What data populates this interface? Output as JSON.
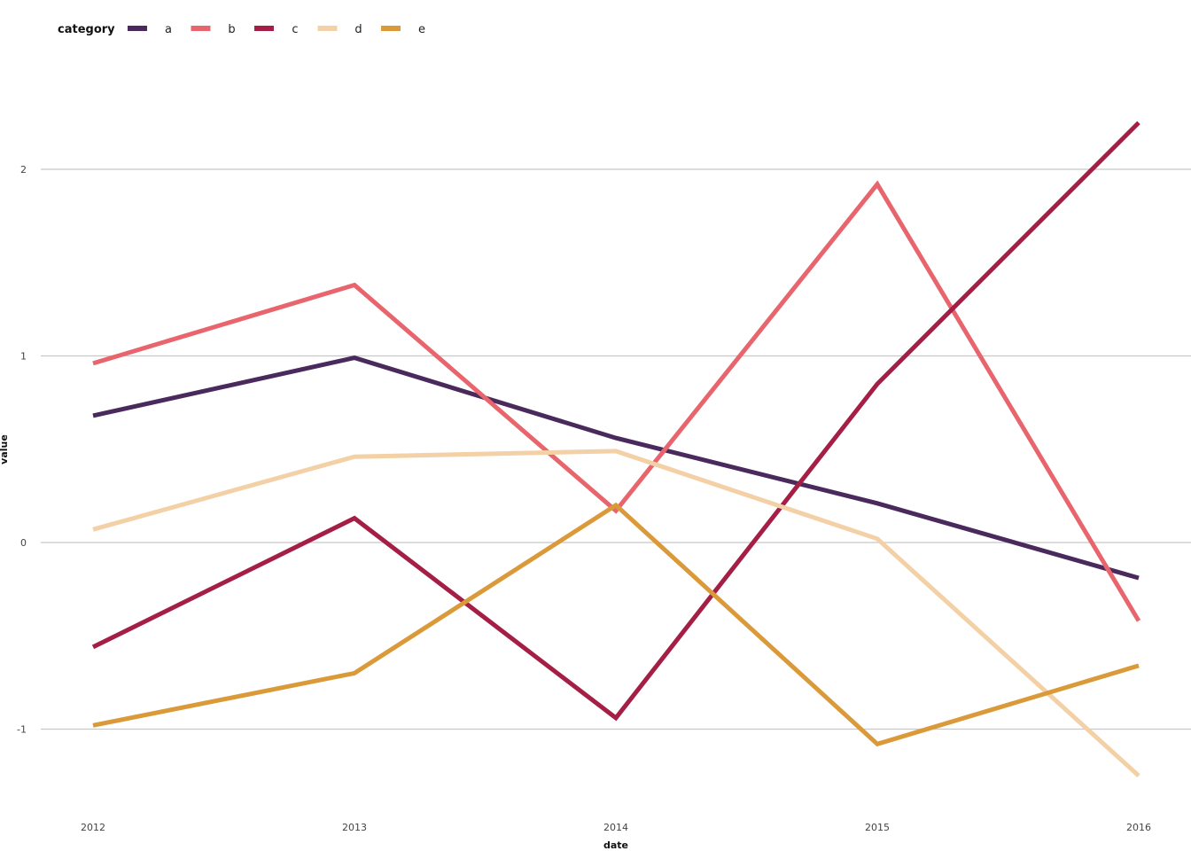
{
  "chart_data": {
    "type": "line",
    "xlabel": "date",
    "ylabel": "value",
    "x": [
      "2012",
      "2013",
      "2014",
      "2015",
      "2016"
    ],
    "x_ticks": [
      "2012",
      "2013",
      "2014",
      "2015",
      "2016"
    ],
    "y_ticks": [
      -1,
      0,
      1,
      2
    ],
    "ylim": [
      -1.4,
      2.4
    ],
    "grid": "horizontal",
    "legend": {
      "title": "category",
      "placement": "top-left"
    },
    "series": [
      {
        "name": "a",
        "color": "#4a2a5c",
        "values": [
          0.68,
          0.99,
          0.56,
          0.21,
          -0.19
        ]
      },
      {
        "name": "b",
        "color": "#e8656d",
        "values": [
          0.96,
          1.38,
          0.17,
          1.92,
          -0.42
        ]
      },
      {
        "name": "c",
        "color": "#a41e45",
        "values": [
          -0.56,
          0.13,
          -0.94,
          0.85,
          2.25
        ]
      },
      {
        "name": "d",
        "color": "#f3d0a5",
        "values": [
          0.07,
          0.46,
          0.49,
          0.02,
          -1.25
        ]
      },
      {
        "name": "e",
        "color": "#db9a3a",
        "values": [
          -0.98,
          -0.7,
          0.2,
          -1.08,
          -0.66
        ]
      }
    ]
  }
}
